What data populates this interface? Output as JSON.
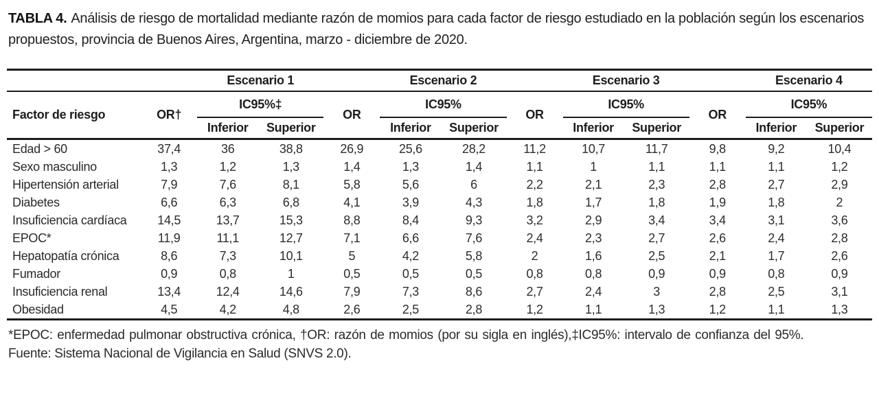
{
  "caption": {
    "label": "TABLA 4.",
    "text": "Análisis de riesgo de mortalidad mediante razón de momios para cada factor de riesgo estudiado en la población según los escenarios propuestos, provincia de Buenos Aires, Argentina, marzo - diciembre de 2020."
  },
  "table": {
    "factor_header": "Factor de riesgo",
    "scenarios": [
      "Escenario 1",
      "Escenario 2",
      "Escenario 3",
      "Escenario 4"
    ],
    "or_headers": [
      "OR†",
      "OR",
      "OR",
      "OR"
    ],
    "ic_headers": [
      "IC95%‡",
      "IC95%",
      "IC95%",
      "IC95%"
    ],
    "inferior_label": "Inferior",
    "superior_label": "Superior",
    "rows": [
      {
        "factor": "Edad > 60",
        "values": [
          "37,4",
          "36",
          "38,8",
          "26,9",
          "25,6",
          "28,2",
          "11,2",
          "10,7",
          "11,7",
          "9,8",
          "9,2",
          "10,4"
        ]
      },
      {
        "factor": "Sexo masculino",
        "values": [
          "1,3",
          "1,2",
          "1,3",
          "1,4",
          "1,3",
          "1,4",
          "1,1",
          "1",
          "1,1",
          "1,1",
          "1,1",
          "1,2"
        ]
      },
      {
        "factor": "Hipertensión arterial",
        "values": [
          "7,9",
          "7,6",
          "8,1",
          "5,8",
          "5,6",
          "6",
          "2,2",
          "2,1",
          "2,3",
          "2,8",
          "2,7",
          "2,9"
        ]
      },
      {
        "factor": "Diabetes",
        "values": [
          "6,6",
          "6,3",
          "6,8",
          "4,1",
          "3,9",
          "4,3",
          "1,8",
          "1,7",
          "1,8",
          "1,9",
          "1,8",
          "2"
        ]
      },
      {
        "factor": "Insuficiencia cardíaca",
        "values": [
          "14,5",
          "13,7",
          "15,3",
          "8,8",
          "8,4",
          "9,3",
          "3,2",
          "2,9",
          "3,4",
          "3,4",
          "3,1",
          "3,6"
        ]
      },
      {
        "factor": "EPOC*",
        "values": [
          "11,9",
          "11,1",
          "12,7",
          "7,1",
          "6,6",
          "7,6",
          "2,4",
          "2,3",
          "2,7",
          "2,6",
          "2,4",
          "2,8"
        ]
      },
      {
        "factor": "Hepatopatía crónica",
        "values": [
          "8,6",
          "7,3",
          "10,1",
          "5",
          "4,2",
          "5,8",
          "2",
          "1,6",
          "2,5",
          "2,1",
          "1,7",
          "2,6"
        ]
      },
      {
        "factor": "Fumador",
        "values": [
          "0,9",
          "0,8",
          "1",
          "0,5",
          "0,5",
          "0,5",
          "0,8",
          "0,8",
          "0,9",
          "0,9",
          "0,8",
          "0,9"
        ]
      },
      {
        "factor": "Insuficiencia renal",
        "values": [
          "13,4",
          "12,4",
          "14,6",
          "7,9",
          "7,3",
          "8,6",
          "2,7",
          "2,4",
          "3",
          "2,8",
          "2,5",
          "3,1"
        ]
      },
      {
        "factor": "Obesidad",
        "values": [
          "4,5",
          "4,2",
          "4,8",
          "2,6",
          "2,5",
          "2,8",
          "1,2",
          "1,1",
          "1,3",
          "1,2",
          "1,1",
          "1,3"
        ]
      }
    ]
  },
  "footnotes": {
    "definitions": "*EPOC: enfermedad pulmonar obstructiva crónica, †OR: razón de momios (por su sigla en inglés),‡IC95%: intervalo de confianza del 95%.",
    "source": "Fuente: Sistema Nacional de Vigilancia en Salud (SNVS 2.0)."
  },
  "colors": {
    "rule": "#1c1c1c",
    "text": "#2a2a2a",
    "background": "#ffffff"
  }
}
